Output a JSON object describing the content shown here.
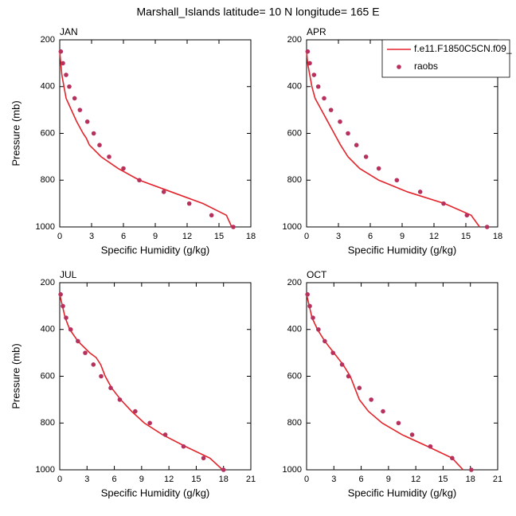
{
  "title": "Marshall_Islands  latitude= 10 N longitude= 165 E",
  "chart_data": [
    {
      "type": "line",
      "title": "JAN",
      "xlabel": "Specific Humidity (g/kg)",
      "ylabel": "Pressure (mb)",
      "xlim": [
        0,
        18
      ],
      "xticks": [
        0,
        3,
        6,
        9,
        12,
        15,
        18
      ],
      "ylim": [
        1000,
        200
      ],
      "yticks": [
        200,
        400,
        600,
        800,
        1000
      ],
      "series": [
        {
          "style": "line",
          "color": "#e3242b",
          "x": [
            16.2,
            15.7,
            13.5,
            10.5,
            7.5,
            5.5,
            3.9,
            2.8,
            2.5,
            2.2,
            1.6,
            1.1,
            0.6,
            0.4,
            0.2,
            0.1,
            0.0
          ],
          "values": [
            1000,
            950,
            900,
            850,
            800,
            750,
            700,
            650,
            620,
            600,
            550,
            500,
            450,
            400,
            350,
            300,
            250
          ]
        },
        {
          "style": "marker",
          "color": "#b8305c",
          "x": [
            16.35,
            14.3,
            12.2,
            9.8,
            7.5,
            6.0,
            4.65,
            3.75,
            3.2,
            2.6,
            1.9,
            1.4,
            0.9,
            0.6,
            0.3,
            0.1
          ],
          "values": [
            1000,
            950,
            900,
            850,
            800,
            750,
            700,
            650,
            600,
            550,
            500,
            450,
            400,
            350,
            300,
            250
          ]
        }
      ]
    },
    {
      "type": "line",
      "title": "APR",
      "xlabel": "Specific Humidity (g/kg)",
      "xlim": [
        0,
        18
      ],
      "xticks": [
        0,
        3,
        6,
        9,
        12,
        15,
        18
      ],
      "ylim": [
        1000,
        200
      ],
      "yticks": [
        200,
        400,
        600,
        800,
        1000
      ],
      "legend": "top-right",
      "series": [
        {
          "name": "f.e11.F1850C5CN.f09_",
          "style": "line",
          "color": "#e3242b",
          "x": [
            16.3,
            15.5,
            13.0,
            9.5,
            6.8,
            5.0,
            3.9,
            3.2,
            2.6,
            2.0,
            1.4,
            0.8,
            0.5,
            0.3,
            0.1,
            0.0
          ],
          "values": [
            1000,
            950,
            900,
            850,
            800,
            750,
            700,
            650,
            600,
            550,
            500,
            450,
            400,
            350,
            300,
            250
          ]
        },
        {
          "name": "raobs",
          "style": "marker",
          "color": "#b8305c",
          "x": [
            17.0,
            15.1,
            12.9,
            10.7,
            8.5,
            6.8,
            5.6,
            4.7,
            3.9,
            3.15,
            2.3,
            1.65,
            1.1,
            0.7,
            0.3,
            0.1
          ],
          "values": [
            1000,
            950,
            900,
            850,
            800,
            750,
            700,
            650,
            600,
            550,
            500,
            450,
            400,
            350,
            300,
            250
          ]
        }
      ]
    },
    {
      "type": "line",
      "title": "JUL",
      "xlabel": "Specific Humidity (g/kg)",
      "ylabel": "Pressure (mb)",
      "xlim": [
        0,
        21
      ],
      "xticks": [
        0,
        3,
        6,
        9,
        12,
        15,
        18,
        21
      ],
      "ylim": [
        1000,
        200
      ],
      "yticks": [
        200,
        400,
        600,
        800,
        1000
      ],
      "series": [
        {
          "style": "line",
          "color": "#e3242b",
          "x": [
            17.9,
            16.5,
            13.8,
            11.3,
            9.3,
            7.9,
            6.7,
            5.7,
            5.0,
            4.5,
            4.0,
            3.3,
            2.0,
            1.1,
            0.6,
            0.3,
            0.0
          ],
          "values": [
            1000,
            950,
            900,
            850,
            800,
            750,
            700,
            650,
            600,
            550,
            520,
            500,
            450,
            400,
            350,
            300,
            250
          ]
        },
        {
          "style": "marker",
          "color": "#b8305c",
          "x": [
            18.0,
            15.8,
            13.6,
            11.6,
            9.9,
            8.3,
            6.6,
            5.6,
            4.55,
            3.7,
            2.8,
            2.0,
            1.2,
            0.7,
            0.35,
            0.1
          ],
          "values": [
            1000,
            950,
            900,
            850,
            800,
            750,
            700,
            650,
            600,
            550,
            500,
            450,
            400,
            350,
            300,
            250
          ]
        }
      ]
    },
    {
      "type": "line",
      "title": "OCT",
      "xlabel": "Specific Humidity (g/kg)",
      "xlim": [
        0,
        21
      ],
      "xticks": [
        0,
        3,
        6,
        9,
        12,
        15,
        18,
        21
      ],
      "ylim": [
        1000,
        200
      ],
      "yticks": [
        200,
        400,
        600,
        800,
        1000
      ],
      "series": [
        {
          "style": "line",
          "color": "#e3242b",
          "x": [
            17.2,
            16.0,
            13.3,
            10.5,
            8.3,
            6.8,
            5.8,
            5.3,
            4.8,
            4.0,
            3.0,
            2.0,
            1.2,
            0.6,
            0.3,
            0.0
          ],
          "values": [
            1000,
            950,
            900,
            850,
            800,
            750,
            700,
            650,
            600,
            550,
            500,
            450,
            400,
            350,
            300,
            250
          ]
        },
        {
          "style": "marker",
          "color": "#b8305c",
          "x": [
            18.1,
            16.0,
            13.6,
            11.6,
            10.1,
            8.4,
            7.1,
            5.8,
            4.6,
            3.9,
            2.9,
            2.0,
            1.3,
            0.7,
            0.35,
            0.1
          ],
          "values": [
            1000,
            950,
            900,
            850,
            800,
            750,
            700,
            650,
            600,
            550,
            500,
            450,
            400,
            350,
            300,
            250
          ]
        }
      ]
    }
  ]
}
